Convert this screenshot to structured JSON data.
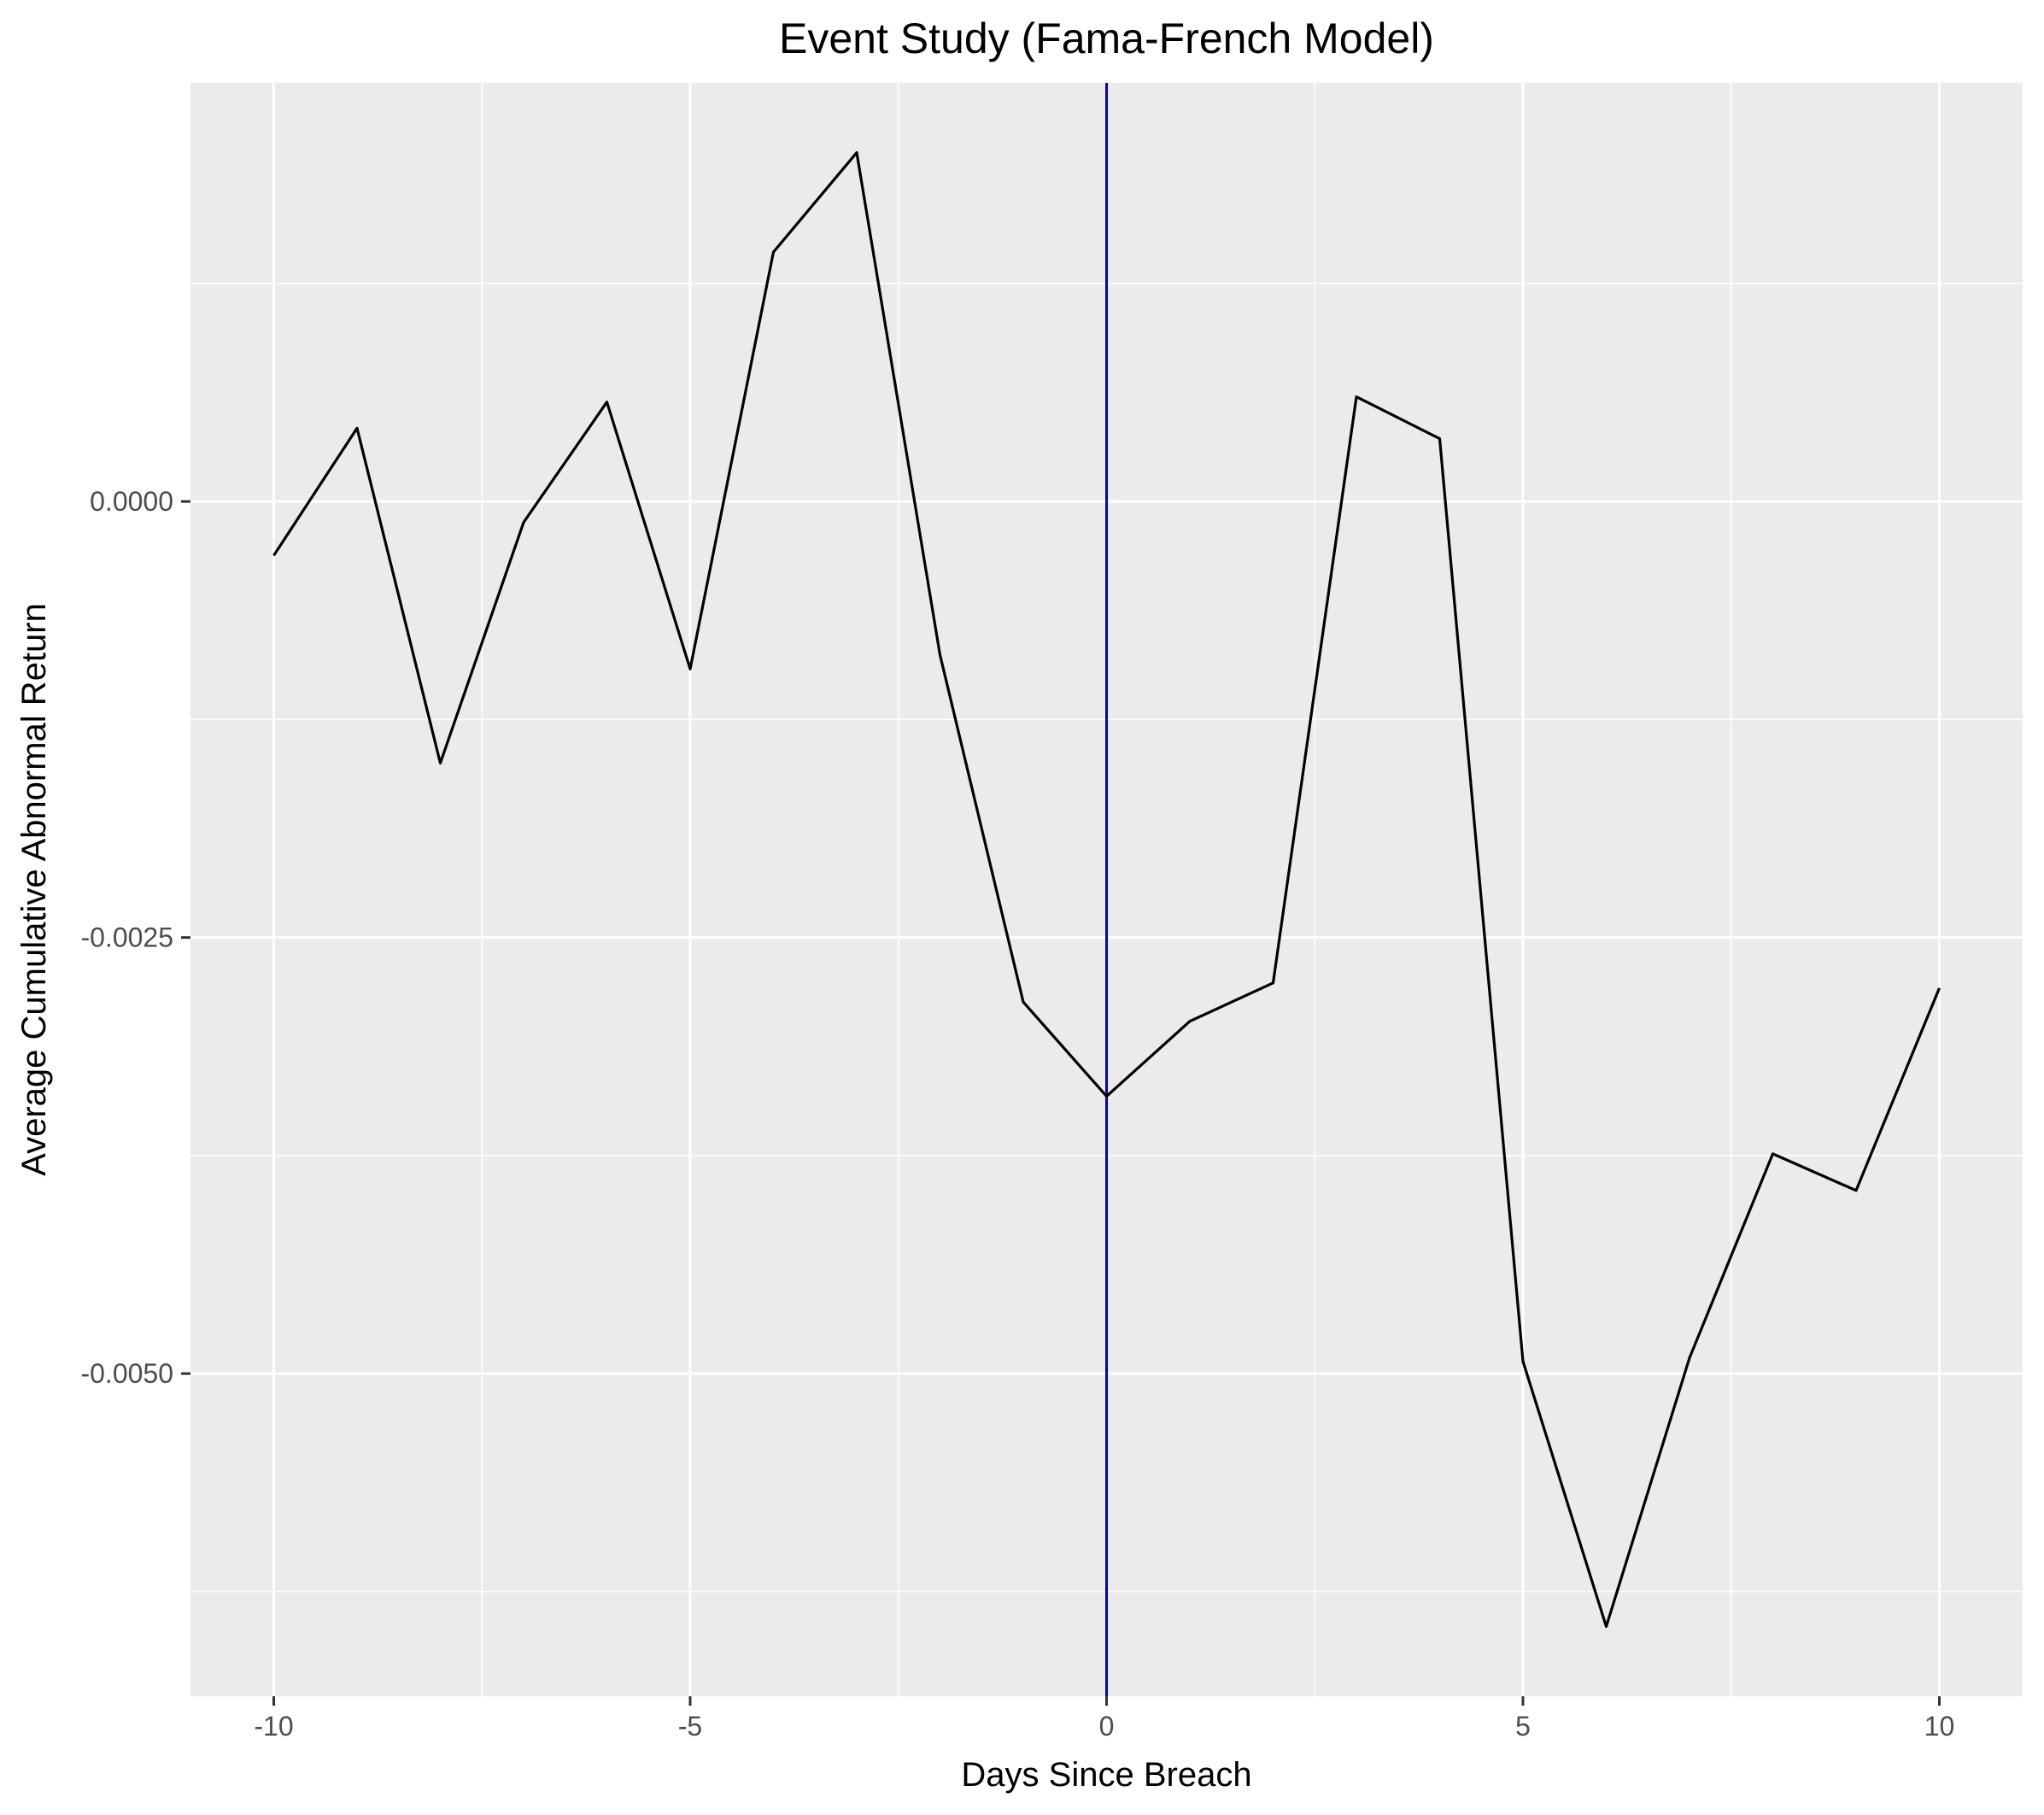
{
  "chart_data": {
    "type": "line",
    "title": "Event Study (Fama-French Model)",
    "xlabel": "Days Since Breach",
    "ylabel": "Average Cumulative Abnormal Return",
    "xlim": [
      -11,
      11.0
    ],
    "ylim": [
      -0.00685,
      0.0024
    ],
    "x_ticks": [
      -10,
      -5,
      0,
      5,
      10
    ],
    "x_tick_labels": [
      "-10",
      "-5",
      "0",
      "5",
      "10"
    ],
    "x_minor_ticks": [
      -7.5,
      -2.5,
      2.5,
      7.5
    ],
    "y_ticks": [
      0.0,
      -0.0025,
      -0.005
    ],
    "y_tick_labels": [
      "0.0000",
      "-0.0025",
      "-0.0050"
    ],
    "y_minor_ticks": [
      0.00125,
      -0.00125,
      -0.00375,
      -0.00625
    ],
    "grid": true,
    "background": "#EBEBEB",
    "grid_color": "#FFFFFF",
    "line_color": "#000000",
    "vline": {
      "x": 0,
      "color": "#0000CC"
    },
    "series": [
      {
        "x": [
          -10,
          -9,
          -8,
          -7,
          -6,
          -5,
          -4,
          -3,
          -2,
          -1,
          0,
          1,
          2,
          3,
          4,
          5,
          6,
          7,
          8,
          9,
          10
        ],
        "values": [
          -0.00031,
          0.00042,
          -0.0015,
          -0.00012,
          0.00057,
          -0.00096,
          0.00143,
          0.002,
          -0.00088,
          -0.00287,
          -0.00341,
          -0.00298,
          -0.00276,
          0.0006,
          0.00036,
          -0.00493,
          -0.00645,
          -0.00491,
          -0.00374,
          -0.00395,
          -0.00279
        ]
      }
    ]
  }
}
